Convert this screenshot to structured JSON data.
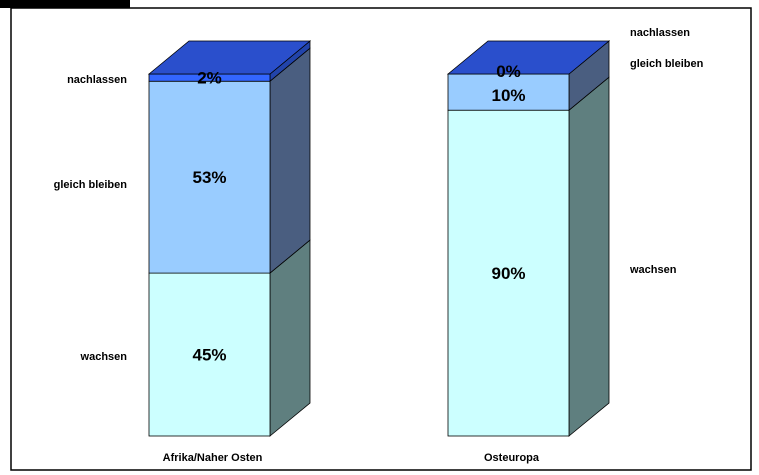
{
  "chart_data": {
    "type": "bar",
    "stacked": true,
    "normalized_percent": true,
    "three_d": true,
    "categories": [
      "Afrika/Naher Osten",
      "Osteuropa"
    ],
    "series": [
      {
        "name": "wachsen",
        "values": [
          45,
          90
        ],
        "labels": [
          "45%",
          "90%"
        ],
        "color": "#ccffff"
      },
      {
        "name": "gleich bleiben",
        "values": [
          53,
          10
        ],
        "labels": [
          "53%",
          "10%"
        ],
        "color": "#99ccff"
      },
      {
        "name": "nachlassen",
        "values": [
          2,
          0
        ],
        "labels": [
          "2%",
          "0%"
        ],
        "color": "#3366ff"
      }
    ],
    "ylim": [
      0,
      100
    ],
    "grid": false,
    "legend": "none",
    "title": "",
    "xlabel": "",
    "ylabel": ""
  },
  "colors": {
    "side_dark": "#5c7a7a",
    "side_mid": "#4a5e80",
    "side_top": "#2244aa",
    "top_face": "#2a4fcc",
    "border": "#000000"
  }
}
